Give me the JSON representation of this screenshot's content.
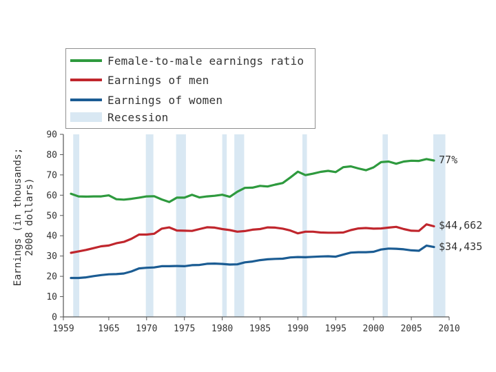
{
  "chart_data": {
    "type": "line",
    "xlabel": "",
    "ylabel_line1": "Earnings (in thousands;",
    "ylabel_line2": "2008 dollars)",
    "xlim": [
      1959,
      2010
    ],
    "ylim": [
      0,
      90
    ],
    "x_ticks": [
      1959,
      1965,
      1970,
      1975,
      1980,
      1985,
      1990,
      1995,
      2000,
      2005,
      2010
    ],
    "y_ticks": [
      0,
      10,
      20,
      30,
      40,
      50,
      60,
      70,
      80,
      90
    ],
    "x": [
      1960,
      1961,
      1962,
      1963,
      1964,
      1965,
      1966,
      1967,
      1968,
      1969,
      1970,
      1971,
      1972,
      1973,
      1974,
      1975,
      1976,
      1977,
      1978,
      1979,
      1980,
      1981,
      1982,
      1983,
      1984,
      1985,
      1986,
      1987,
      1988,
      1989,
      1990,
      1991,
      1992,
      1993,
      1994,
      1995,
      1996,
      1997,
      1998,
      1999,
      2000,
      2001,
      2002,
      2003,
      2004,
      2005,
      2006,
      2007,
      2008
    ],
    "series": [
      {
        "name": "Female-to-male earnings ratio",
        "color": "#2e9a3e",
        "values": [
          60.7,
          59.4,
          59.3,
          59.4,
          59.4,
          59.9,
          58.0,
          57.8,
          58.2,
          58.8,
          59.4,
          59.5,
          57.9,
          56.6,
          58.8,
          58.8,
          60.2,
          58.9,
          59.4,
          59.7,
          60.2,
          59.2,
          61.7,
          63.6,
          63.7,
          64.6,
          64.3,
          65.2,
          66.0,
          68.7,
          71.6,
          69.9,
          70.6,
          71.5,
          72.0,
          71.4,
          73.8,
          74.2,
          73.2,
          72.3,
          73.7,
          76.3,
          76.6,
          75.5,
          76.6,
          77.0,
          76.9,
          77.8,
          77.1
        ]
      },
      {
        "name": "Earnings of men",
        "color": "#c0262d",
        "values": [
          31.6,
          32.3,
          33.0,
          33.9,
          34.8,
          35.2,
          36.3,
          37.0,
          38.5,
          40.6,
          40.6,
          41.0,
          43.5,
          44.1,
          42.6,
          42.5,
          42.4,
          43.3,
          44.2,
          44.0,
          43.3,
          42.8,
          42.0,
          42.3,
          43.0,
          43.3,
          44.1,
          44.0,
          43.5,
          42.6,
          41.2,
          42.0,
          42.0,
          41.6,
          41.5,
          41.5,
          41.6,
          42.8,
          43.6,
          43.8,
          43.5,
          43.6,
          44.0,
          44.4,
          43.3,
          42.5,
          42.4,
          45.6,
          44.662
        ]
      },
      {
        "name": "Earnings of women",
        "color": "#1b5c93",
        "values": [
          19.2,
          19.2,
          19.5,
          20.1,
          20.6,
          21.0,
          21.1,
          21.4,
          22.4,
          23.9,
          24.2,
          24.4,
          25.0,
          25.0,
          25.1,
          25.0,
          25.5,
          25.6,
          26.2,
          26.3,
          26.1,
          25.8,
          25.9,
          26.9,
          27.3,
          28.0,
          28.4,
          28.6,
          28.7,
          29.3,
          29.5,
          29.4,
          29.6,
          29.8,
          29.9,
          29.7,
          30.7,
          31.7,
          31.9,
          31.9,
          32.1,
          33.2,
          33.7,
          33.6,
          33.3,
          32.8,
          32.6,
          35.1,
          34.435
        ]
      }
    ],
    "recessions": [
      [
        1960.3,
        1961.1
      ],
      [
        1969.9,
        1970.9
      ],
      [
        1973.9,
        1975.2
      ],
      [
        1980.0,
        1980.6
      ],
      [
        1981.6,
        1982.9
      ],
      [
        1990.6,
        1991.2
      ],
      [
        2001.2,
        2001.9
      ],
      [
        2007.9,
        2009.5
      ]
    ],
    "recession_color": "#d9e8f3",
    "end_labels": [
      {
        "series": 0,
        "text": "77%"
      },
      {
        "series": 1,
        "text": "$44,662"
      },
      {
        "series": 2,
        "text": "$34,435"
      }
    ]
  },
  "legend": {
    "items": [
      {
        "label": "Female-to-male earnings ratio",
        "color": "#2e9a3e"
      },
      {
        "label": "Earnings of men",
        "color": "#c0262d"
      },
      {
        "label": "Earnings of women",
        "color": "#1b5c93"
      },
      {
        "label": "Recession",
        "color": "#d9e8f3"
      }
    ]
  }
}
